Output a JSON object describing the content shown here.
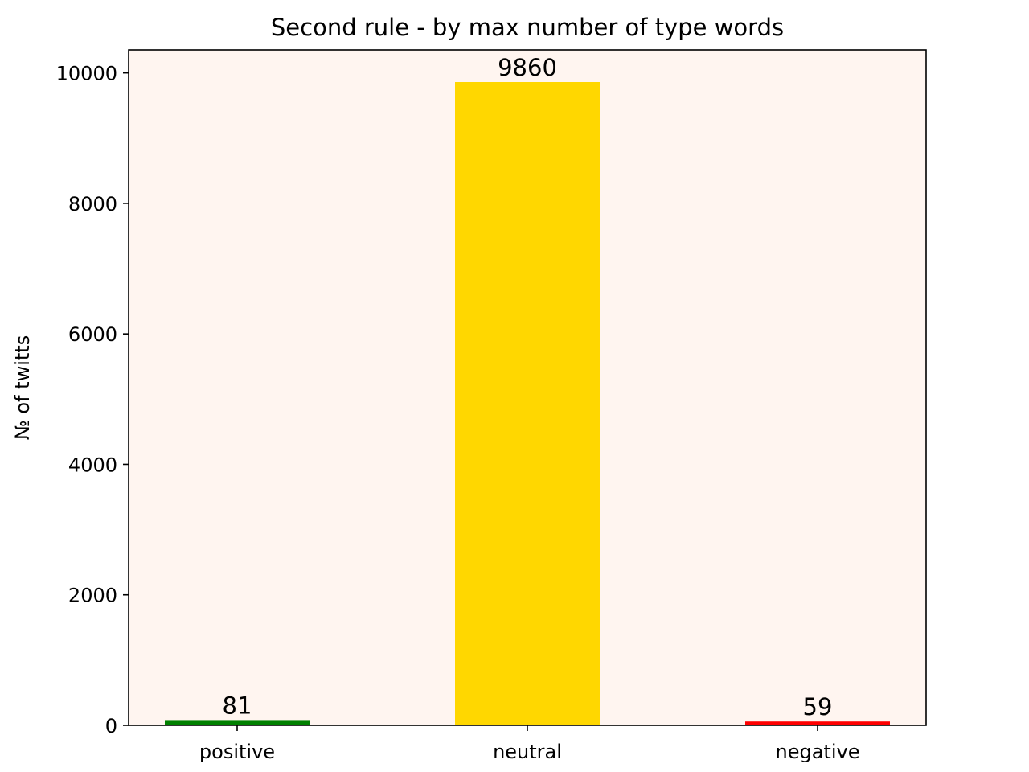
{
  "chart_data": {
    "type": "bar",
    "title": "Second rule - by max number of type words",
    "xlabel": "",
    "ylabel": "№ of twitts",
    "categories": [
      "positive",
      "neutral",
      "negative"
    ],
    "values": [
      81,
      9860,
      59
    ],
    "data_labels": [
      "81",
      "9860",
      "59"
    ],
    "bar_colors": [
      "#008000",
      "#ffd700",
      "#ff0000"
    ],
    "ylim": [
      0,
      10353
    ],
    "yticks": [
      0,
      2000,
      4000,
      6000,
      8000,
      10000
    ],
    "ytick_labels": [
      "0",
      "2000",
      "4000",
      "6000",
      "8000",
      "10000"
    ],
    "grid": false,
    "legend": "none",
    "plot_background": "#fff5f0"
  }
}
